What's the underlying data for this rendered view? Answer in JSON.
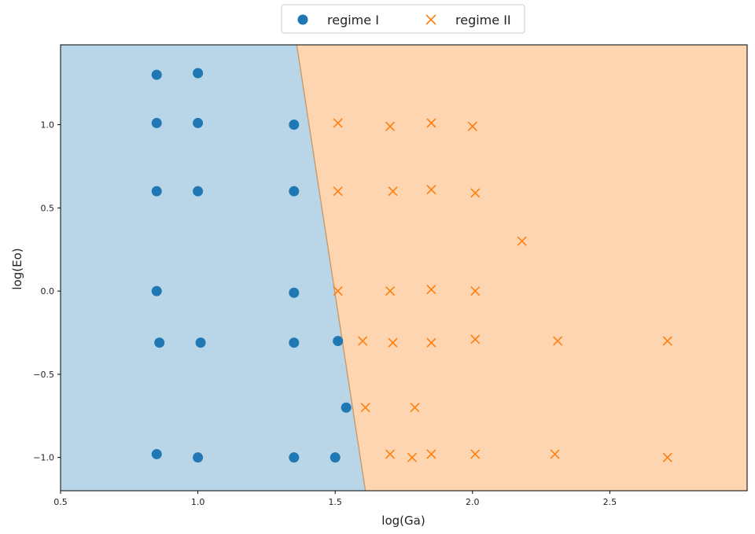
{
  "chart_data": {
    "type": "scatter",
    "xlabel": "log(Ga)",
    "ylabel": "log(Eo)",
    "xlim": [
      0.5,
      3.0
    ],
    "ylim": [
      -1.2,
      1.48
    ],
    "x_ticks": [
      0.5,
      1.0,
      1.5,
      2.0,
      2.5
    ],
    "x_tick_labels": [
      "0.5",
      "1.0",
      "1.5",
      "2.0",
      "2.5"
    ],
    "y_ticks": [
      -1.0,
      -0.5,
      0.0,
      0.5,
      1.0
    ],
    "y_tick_labels": [
      "−1.0",
      "−0.5",
      "0.0",
      "0.5",
      "1.0"
    ],
    "grid": false,
    "legend_position": "top-center",
    "decision_boundary": {
      "points": [
        [
          1.36,
          1.48
        ],
        [
          1.61,
          -1.2
        ]
      ],
      "left_region": "regime I",
      "right_region": "regime II"
    },
    "series": [
      {
        "name": "regime I",
        "marker": "circle",
        "color": "#1f77b4",
        "region_color": "#b9d5e8",
        "points": [
          [
            0.85,
            1.3
          ],
          [
            1.0,
            1.31
          ],
          [
            0.85,
            1.01
          ],
          [
            1.0,
            1.01
          ],
          [
            1.35,
            1.0
          ],
          [
            0.85,
            0.6
          ],
          [
            1.0,
            0.6
          ],
          [
            1.35,
            0.6
          ],
          [
            0.85,
            0.0
          ],
          [
            1.35,
            -0.01
          ],
          [
            0.86,
            -0.31
          ],
          [
            1.01,
            -0.31
          ],
          [
            1.35,
            -0.31
          ],
          [
            1.51,
            -0.3
          ],
          [
            1.54,
            -0.7
          ],
          [
            0.85,
            -0.98
          ],
          [
            1.0,
            -1.0
          ],
          [
            1.35,
            -1.0
          ],
          [
            1.5,
            -1.0
          ]
        ]
      },
      {
        "name": "regime II",
        "marker": "x",
        "color": "#ff7f0e",
        "region_color": "#fdd5b1",
        "points": [
          [
            1.51,
            1.01
          ],
          [
            1.7,
            0.99
          ],
          [
            1.85,
            1.01
          ],
          [
            2.0,
            0.99
          ],
          [
            1.51,
            0.6
          ],
          [
            1.71,
            0.6
          ],
          [
            1.85,
            0.61
          ],
          [
            2.01,
            0.59
          ],
          [
            2.18,
            0.3
          ],
          [
            1.51,
            0.0
          ],
          [
            1.7,
            0.0
          ],
          [
            1.85,
            0.01
          ],
          [
            2.01,
            0.0
          ],
          [
            1.6,
            -0.3
          ],
          [
            1.71,
            -0.31
          ],
          [
            1.85,
            -0.31
          ],
          [
            2.01,
            -0.29
          ],
          [
            2.31,
            -0.3
          ],
          [
            2.71,
            -0.3
          ],
          [
            1.61,
            -0.7
          ],
          [
            1.79,
            -0.7
          ],
          [
            1.7,
            -0.98
          ],
          [
            1.78,
            -1.0
          ],
          [
            1.85,
            -0.98
          ],
          [
            2.01,
            -0.98
          ],
          [
            2.3,
            -0.98
          ],
          [
            2.71,
            -1.0
          ]
        ]
      }
    ]
  }
}
